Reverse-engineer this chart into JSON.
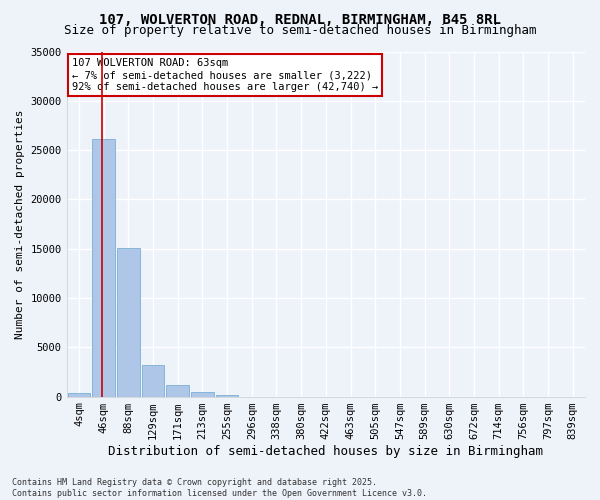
{
  "title1": "107, WOLVERTON ROAD, REDNAL, BIRMINGHAM, B45 8RL",
  "title2": "Size of property relative to semi-detached houses in Birmingham",
  "xlabel": "Distribution of semi-detached houses by size in Birmingham",
  "ylabel": "Number of semi-detached properties",
  "footnote": "Contains HM Land Registry data © Crown copyright and database right 2025.\nContains public sector information licensed under the Open Government Licence v3.0.",
  "bin_labels": [
    "4sqm",
    "46sqm",
    "88sqm",
    "129sqm",
    "171sqm",
    "213sqm",
    "255sqm",
    "296sqm",
    "338sqm",
    "380sqm",
    "422sqm",
    "463sqm",
    "505sqm",
    "547sqm",
    "589sqm",
    "630sqm",
    "672sqm",
    "714sqm",
    "756sqm",
    "797sqm",
    "839sqm"
  ],
  "bin_values": [
    350,
    26100,
    15100,
    3200,
    1200,
    450,
    200,
    0,
    0,
    0,
    0,
    0,
    0,
    0,
    0,
    0,
    0,
    0,
    0,
    0,
    0
  ],
  "bar_color": "#aec6e8",
  "bar_edge_color": "#7aafd4",
  "property_size": 63,
  "annotation_text": "107 WOLVERTON ROAD: 63sqm\n← 7% of semi-detached houses are smaller (3,222)\n92% of semi-detached houses are larger (42,740) →",
  "annotation_box_color": "#ffffff",
  "annotation_border_color": "#cc0000",
  "red_line_color": "#cc0000",
  "ylim": [
    0,
    35000
  ],
  "yticks": [
    0,
    5000,
    10000,
    15000,
    20000,
    25000,
    30000,
    35000
  ],
  "ytick_labels": [
    "0",
    "5000",
    "10000",
    "15000",
    "20000",
    "25000",
    "30000",
    "35000"
  ],
  "background_color": "#eef2f9",
  "grid_color": "#ffffff",
  "title1_fontsize": 10,
  "title2_fontsize": 9,
  "xlabel_fontsize": 9,
  "ylabel_fontsize": 8,
  "tick_fontsize": 7.5,
  "footnote_fontsize": 6
}
